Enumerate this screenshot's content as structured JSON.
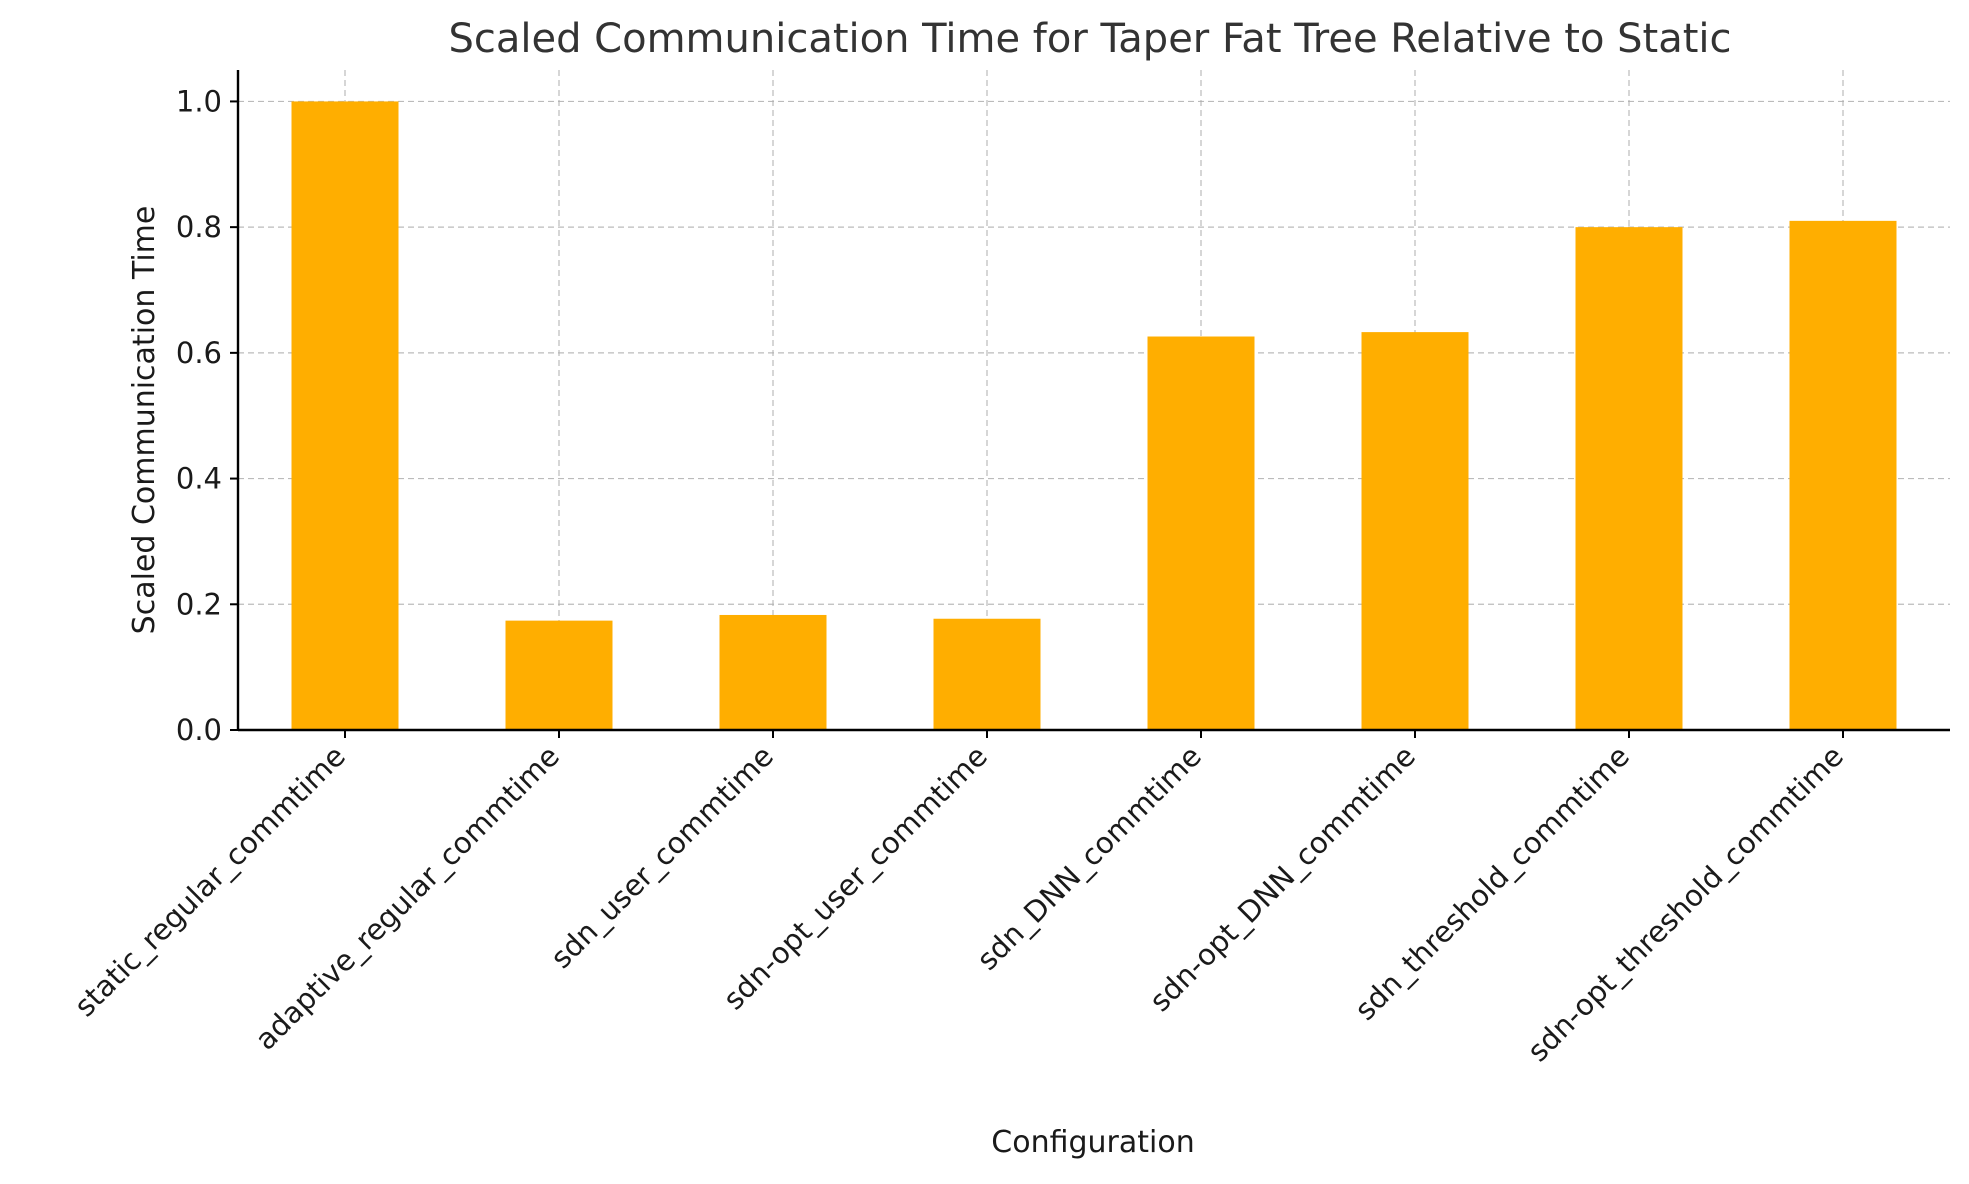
{
  "chart_data": {
    "type": "bar",
    "title": "Scaled Communication Time for Taper Fat Tree Relative to Static",
    "xlabel": "Configuration",
    "ylabel": "Scaled Communication Time",
    "categories": [
      "static_regular_commtime",
      "adaptive_regular_commtime",
      "sdn_user_commtime",
      "sdn-opt_user_commtime",
      "sdn_DNN_commtime",
      "sdn-opt_DNN_commtime",
      "sdn_threshold_commtime",
      "sdn-opt_threshold_commtime"
    ],
    "values": [
      1.0,
      0.174,
      0.183,
      0.177,
      0.626,
      0.633,
      0.8,
      0.81
    ],
    "ylim": [
      0,
      1.05
    ],
    "yticks": [
      "0.0",
      "0.2",
      "0.4",
      "0.6",
      "0.8",
      "1.0"
    ],
    "grid": true,
    "bar_color": "#FFAE00"
  }
}
